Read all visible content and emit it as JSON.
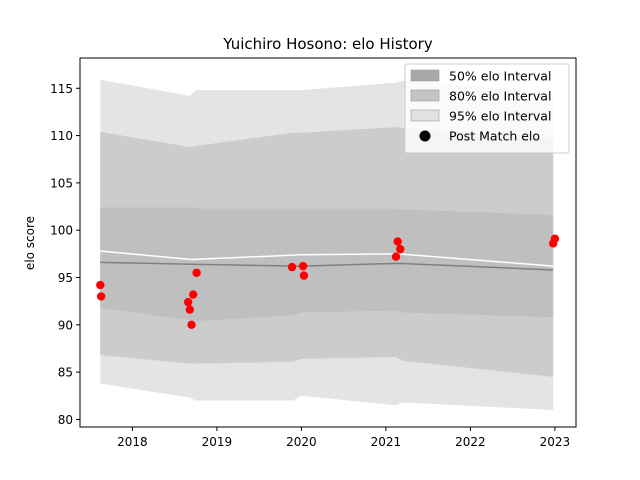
{
  "chart_data": {
    "type": "scatter",
    "title": "Yuichiro Hosono: elo History",
    "xlabel": "",
    "ylabel": "elo score",
    "xlim": [
      2017.38,
      2023.25
    ],
    "ylim": [
      79.2,
      118.2
    ],
    "xticks": [
      2018,
      2019,
      2020,
      2021,
      2022,
      2023
    ],
    "yticks": [
      80,
      85,
      90,
      95,
      100,
      105,
      110,
      115
    ],
    "legend_placement": "top-right",
    "grid": false,
    "legend": [
      {
        "label": "50% elo Interval",
        "kind": "band",
        "color": "#a8a8a8"
      },
      {
        "label": "80% elo Interval",
        "kind": "band",
        "color": "#c4c4c4"
      },
      {
        "label": "95% elo Interval",
        "kind": "band",
        "color": "#e1e1e1"
      },
      {
        "label": "Post Match elo",
        "kind": "marker",
        "color": "#000000"
      }
    ],
    "bands": [
      {
        "name": "95% elo Interval",
        "color": "#e4e4e4",
        "x": [
          2017.62,
          2018.68,
          2018.75,
          2019.9,
          2020.0,
          2021.12,
          2021.2,
          2022.98
        ],
        "upper": [
          115.9,
          114.2,
          114.8,
          114.8,
          114.8,
          115.6,
          115.8,
          114.6
        ],
        "lower": [
          83.8,
          82.3,
          82.0,
          82.0,
          82.5,
          81.5,
          81.8,
          81.0
        ]
      },
      {
        "name": "80% elo Interval",
        "color": "#cccccc",
        "x": [
          2017.62,
          2018.68,
          2018.75,
          2019.9,
          2020.0,
          2021.12,
          2021.2,
          2022.98
        ],
        "upper": [
          110.4,
          108.8,
          108.9,
          110.3,
          110.3,
          110.9,
          110.8,
          109.7
        ],
        "lower": [
          86.8,
          85.9,
          85.9,
          86.1,
          86.4,
          86.6,
          86.2,
          84.5
        ]
      },
      {
        "name": "50% elo Interval",
        "color": "#bfbfbf",
        "x": [
          2017.62,
          2018.68,
          2018.75,
          2019.9,
          2020.0,
          2021.12,
          2021.2,
          2022.98
        ],
        "upper": [
          102.4,
          102.4,
          102.3,
          102.3,
          102.3,
          102.3,
          102.2,
          101.6
        ],
        "lower": [
          91.8,
          90.5,
          90.4,
          91.0,
          91.3,
          91.5,
          91.3,
          90.8
        ]
      }
    ],
    "lines": [
      {
        "name": "median",
        "color": "#808080",
        "x": [
          2017.62,
          2018.7,
          2020.0,
          2021.15,
          2022.98
        ],
        "y": [
          96.6,
          96.4,
          96.2,
          96.5,
          95.8
        ]
      },
      {
        "name": "mean",
        "color": "#ffffff",
        "x": [
          2017.62,
          2018.7,
          2020.0,
          2021.15,
          2022.98
        ],
        "y": [
          97.8,
          96.9,
          97.4,
          97.5,
          96.2
        ]
      }
    ],
    "points": {
      "name": "Post Match elo",
      "color": "#ff0000",
      "x": [
        2017.62,
        2017.63,
        2018.66,
        2018.68,
        2018.7,
        2018.72,
        2018.76,
        2019.89,
        2020.02,
        2020.03,
        2021.12,
        2021.14,
        2021.17,
        2022.98,
        2023.0
      ],
      "y": [
        94.2,
        93.0,
        92.4,
        91.6,
        90.0,
        93.2,
        95.5,
        96.1,
        96.2,
        95.2,
        97.2,
        98.8,
        98.0,
        98.6,
        99.1
      ]
    }
  }
}
